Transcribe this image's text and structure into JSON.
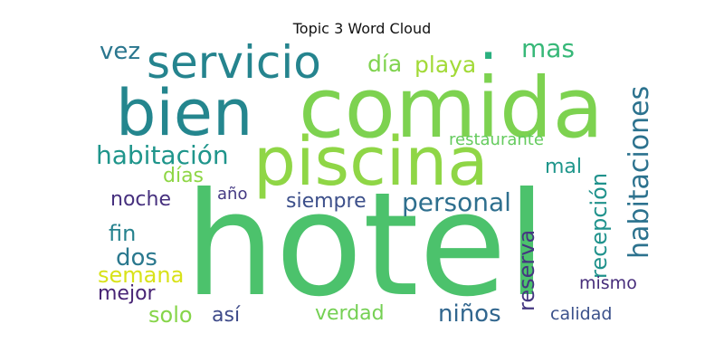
{
  "title": "Topic 3 Word Cloud",
  "words": [
    {
      "text": "hotel",
      "color": "#4cc26c"
    },
    {
      "text": "comida",
      "color": "#7dd250"
    },
    {
      "text": "piscina",
      "color": "#8fd646"
    },
    {
      "text": "bien",
      "color": "#24868e"
    },
    {
      "text": "servicio",
      "color": "#25848e"
    },
    {
      "text": "habitaciones",
      "color": "#2c728e"
    },
    {
      "text": "habitación",
      "color": "#1f958b"
    },
    {
      "text": "personal",
      "color": "#2e6f8e"
    },
    {
      "text": "recepción",
      "color": "#20928c"
    },
    {
      "text": "playa",
      "color": "#a2da37"
    },
    {
      "text": "día",
      "color": "#7fd34e"
    },
    {
      "text": "vez",
      "color": "#2a768e"
    },
    {
      "text": "mas",
      "color": "#37b878"
    },
    {
      "text": "restaurante",
      "color": "#65cb5e"
    },
    {
      "text": "mal",
      "color": "#1f968b"
    },
    {
      "text": "días",
      "color": "#8ed645"
    },
    {
      "text": "noche",
      "color": "#46307e"
    },
    {
      "text": "siempre",
      "color": "#3c4f8a"
    },
    {
      "text": "año",
      "color": "#443983"
    },
    {
      "text": "fin",
      "color": "#26828e"
    },
    {
      "text": "dos",
      "color": "#2a788e"
    },
    {
      "text": "semana",
      "color": "#d8e219"
    },
    {
      "text": "mejor",
      "color": "#482475"
    },
    {
      "text": "reserva",
      "color": "#453781"
    },
    {
      "text": "solo",
      "color": "#86d549"
    },
    {
      "text": "así",
      "color": "#3e4a89"
    },
    {
      "text": "verdad",
      "color": "#75d054"
    },
    {
      "text": "niños",
      "color": "#31668e"
    },
    {
      "text": "mismo",
      "color": "#472d7b"
    },
    {
      "text": "calidad",
      "color": "#3b518b"
    },
    {
      "text": "·",
      "color": "#2ab07f"
    }
  ]
}
